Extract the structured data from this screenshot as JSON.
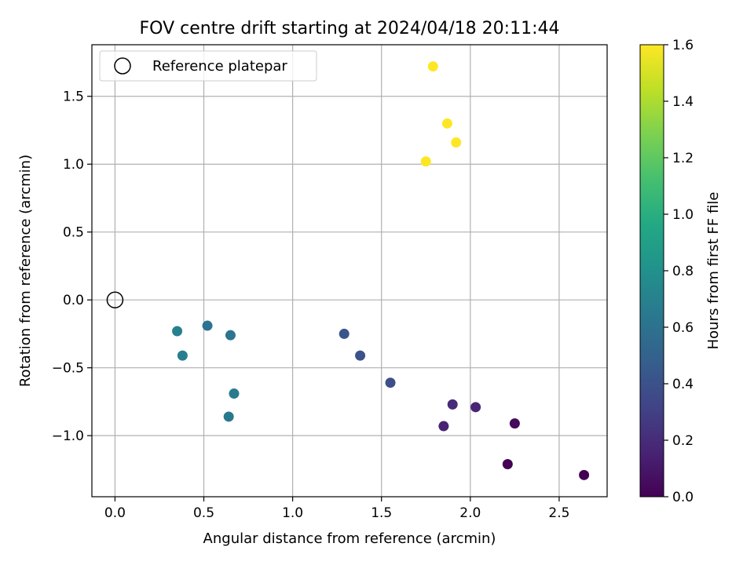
{
  "chart_data": {
    "type": "scatter",
    "title": "FOV centre drift starting at 2024/04/18 20:11:44",
    "xlabel": "Angular distance from reference (arcmin)",
    "ylabel": "Rotation from reference (arcmin)",
    "xlim": [
      -0.13,
      2.77
    ],
    "ylim": [
      -1.45,
      1.88
    ],
    "xticks": [
      0.0,
      0.5,
      1.0,
      1.5,
      2.0,
      2.5
    ],
    "xtick_labels": [
      "0.0",
      "0.5",
      "1.0",
      "1.5",
      "2.0",
      "2.5"
    ],
    "yticks": [
      -1.0,
      -0.5,
      0.0,
      0.5,
      1.0,
      1.5
    ],
    "ytick_labels": [
      "−1.0",
      "−0.5",
      "0.0",
      "0.5",
      "1.0",
      "1.5"
    ],
    "grid": true,
    "legend": {
      "position": "upper-left",
      "entries": [
        {
          "label": "Reference platepar",
          "marker": "open-circle"
        }
      ]
    },
    "reference_point": {
      "x": 0.0,
      "y": 0.0,
      "label": "Reference platepar"
    },
    "colorbar": {
      "label": "Hours from first FF file",
      "colormap": "viridis",
      "range": [
        0.0,
        1.6
      ],
      "ticks": [
        0.0,
        0.2,
        0.4,
        0.6,
        0.8,
        1.0,
        1.2,
        1.4,
        1.6
      ],
      "tick_labels": [
        "0.0",
        "0.2",
        "0.4",
        "0.6",
        "0.8",
        "1.0",
        "1.2",
        "1.4",
        "1.6"
      ]
    },
    "series": [
      {
        "points": [
          {
            "x": 2.64,
            "y": -1.29,
            "c": 0.0
          },
          {
            "x": 2.21,
            "y": -1.21,
            "c": 0.0
          },
          {
            "x": 2.25,
            "y": -0.91,
            "c": 0.03
          },
          {
            "x": 1.85,
            "y": -0.93,
            "c": 0.15
          },
          {
            "x": 2.03,
            "y": -0.79,
            "c": 0.17
          },
          {
            "x": 1.9,
            "y": -0.77,
            "c": 0.19
          },
          {
            "x": 1.55,
            "y": -0.61,
            "c": 0.38
          },
          {
            "x": 1.38,
            "y": -0.41,
            "c": 0.4
          },
          {
            "x": 1.29,
            "y": -0.25,
            "c": 0.42
          },
          {
            "x": 0.52,
            "y": -0.19,
            "c": 0.6
          },
          {
            "x": 0.65,
            "y": -0.26,
            "c": 0.62
          },
          {
            "x": 0.35,
            "y": -0.23,
            "c": 0.7
          },
          {
            "x": 0.38,
            "y": -0.41,
            "c": 0.68
          },
          {
            "x": 0.67,
            "y": -0.69,
            "c": 0.66
          },
          {
            "x": 0.64,
            "y": -0.86,
            "c": 0.64
          },
          {
            "x": 1.75,
            "y": 1.02,
            "c": 1.6
          },
          {
            "x": 1.92,
            "y": 1.16,
            "c": 1.6
          },
          {
            "x": 1.87,
            "y": 1.3,
            "c": 1.6
          },
          {
            "x": 1.79,
            "y": 1.72,
            "c": 1.6
          }
        ]
      }
    ]
  }
}
